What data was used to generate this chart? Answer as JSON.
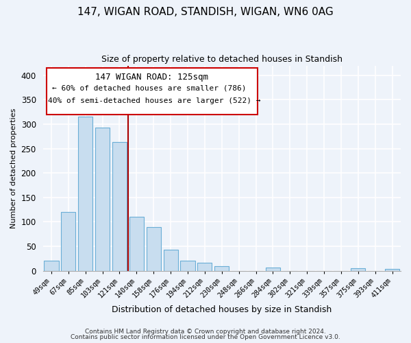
{
  "title": "147, WIGAN ROAD, STANDISH, WIGAN, WN6 0AG",
  "subtitle": "Size of property relative to detached houses in Standish",
  "xlabel": "Distribution of detached houses by size in Standish",
  "ylabel": "Number of detached properties",
  "bar_color": "#c8ddef",
  "bar_edge_color": "#6aaed6",
  "marker_line_color": "#aa0000",
  "background_color": "#eef3fa",
  "grid_color": "#d0dcea",
  "categories": [
    "49sqm",
    "67sqm",
    "85sqm",
    "103sqm",
    "121sqm",
    "140sqm",
    "158sqm",
    "176sqm",
    "194sqm",
    "212sqm",
    "230sqm",
    "248sqm",
    "266sqm",
    "284sqm",
    "302sqm",
    "321sqm",
    "339sqm",
    "357sqm",
    "375sqm",
    "393sqm",
    "411sqm"
  ],
  "values": [
    20,
    120,
    315,
    293,
    263,
    110,
    90,
    43,
    21,
    17,
    9,
    0,
    0,
    7,
    0,
    0,
    0,
    0,
    5,
    0,
    3
  ],
  "marker_after_index": 4,
  "annotation_title": "147 WIGAN ROAD: 125sqm",
  "annotation_line1": "← 60% of detached houses are smaller (786)",
  "annotation_line2": "40% of semi-detached houses are larger (522) →",
  "ylim": [
    0,
    420
  ],
  "yticks": [
    0,
    50,
    100,
    150,
    200,
    250,
    300,
    350,
    400
  ],
  "footer1": "Contains HM Land Registry data © Crown copyright and database right 2024.",
  "footer2": "Contains public sector information licensed under the Open Government Licence v3.0."
}
